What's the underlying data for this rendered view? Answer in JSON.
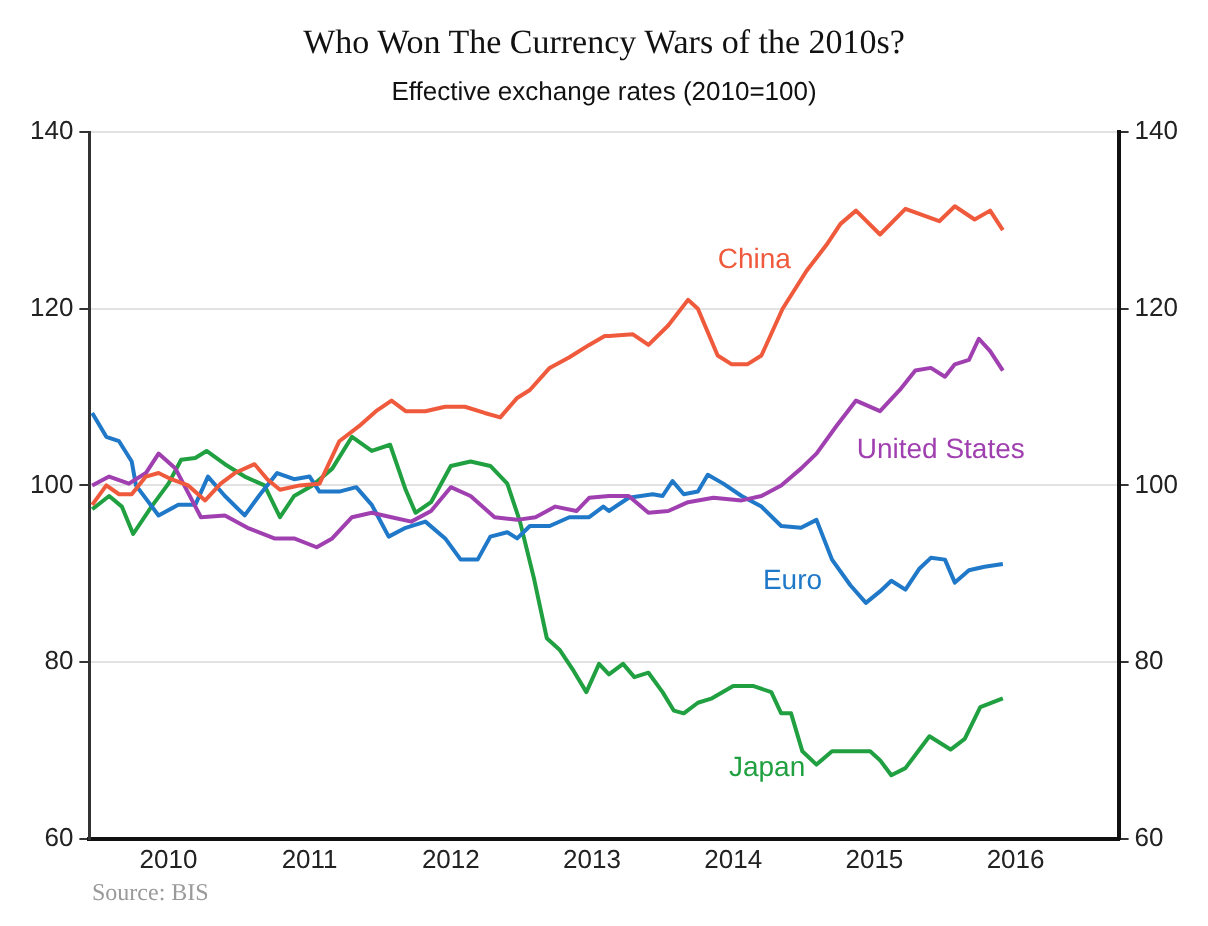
{
  "chart_data": {
    "type": "line",
    "title": "Who Won The Currency Wars of the 2010s?",
    "subtitle": "Effective exchange rates (2010=100)",
    "series": [
      {
        "name": "China",
        "color": "#f05a3c",
        "x": [
          2009.96,
          2010.06,
          2010.15,
          2010.24,
          2010.34,
          2010.43,
          2010.52,
          2010.64,
          2010.76,
          2010.87,
          2010.97,
          2011.11,
          2011.2,
          2011.29,
          2011.43,
          2011.57,
          2011.71,
          2011.85,
          2011.97,
          2012.08,
          2012.18,
          2012.32,
          2012.46,
          2012.6,
          2012.74,
          2012.85,
          2012.97,
          2013.06,
          2013.2,
          2013.34,
          2013.48,
          2013.59,
          2013.62,
          2013.79,
          2013.9,
          2014.04,
          2014.18,
          2014.25,
          2014.39,
          2014.49,
          2014.6,
          2014.7,
          2014.85,
          2015.02,
          2015.16,
          2015.26,
          2015.37,
          2015.54,
          2015.72,
          2015.96,
          2016.07,
          2016.21,
          2016.32,
          2016.41
        ],
        "values": [
          97.8,
          100,
          99,
          99,
          101,
          101.4,
          100.7,
          100,
          98.3,
          100.2,
          101.4,
          102.4,
          100.7,
          99.5,
          100,
          100.2,
          105,
          106.7,
          108.4,
          109.6,
          108.4,
          108.4,
          108.9,
          108.9,
          108.2,
          107.7,
          109.9,
          110.8,
          113.3,
          114.5,
          115.9,
          116.9,
          116.9,
          117.1,
          115.9,
          118.1,
          121,
          120,
          114.7,
          113.7,
          113.7,
          114.7,
          120,
          124.3,
          127.2,
          129.6,
          131.1,
          128.4,
          131.3,
          129.9,
          131.6,
          130.1,
          131.1,
          128.9
        ]
      },
      {
        "name": "United States",
        "color": "#a040b0",
        "x": [
          2009.96,
          2010.08,
          2010.22,
          2010.34,
          2010.43,
          2010.55,
          2010.73,
          2010.9,
          2011.06,
          2011.25,
          2011.39,
          2011.55,
          2011.66,
          2011.8,
          2011.94,
          2012.08,
          2012.22,
          2012.36,
          2012.5,
          2012.64,
          2012.81,
          2012.97,
          2013.1,
          2013.24,
          2013.39,
          2013.48,
          2013.62,
          2013.76,
          2013.9,
          2014.04,
          2014.18,
          2014.36,
          2014.56,
          2014.7,
          2014.84,
          2014.98,
          2015.09,
          2015.23,
          2015.37,
          2015.54,
          2015.68,
          2015.79,
          2015.9,
          2016.0,
          2016.07,
          2016.17,
          2016.24,
          2016.32,
          2016.41
        ],
        "values": [
          100,
          101,
          100.2,
          101.4,
          103.6,
          101.9,
          96.4,
          96.6,
          95.2,
          94,
          94,
          93,
          94,
          96.4,
          96.9,
          96.4,
          95.9,
          97.1,
          99.8,
          98.8,
          96.4,
          96.1,
          96.4,
          97.6,
          97.1,
          98.6,
          98.8,
          98.8,
          96.9,
          97.1,
          98.1,
          98.6,
          98.3,
          98.8,
          100,
          101.9,
          103.6,
          106.7,
          109.6,
          108.4,
          110.8,
          113,
          113.3,
          112.3,
          113.7,
          114.2,
          116.6,
          115.2,
          113
        ]
      },
      {
        "name": "Euro",
        "color": "#1f78c8",
        "x": [
          2009.96,
          2010.06,
          2010.15,
          2010.24,
          2010.27,
          2010.43,
          2010.57,
          2010.69,
          2010.78,
          2010.9,
          2011.04,
          2011.15,
          2011.27,
          2011.39,
          2011.5,
          2011.57,
          2011.71,
          2011.83,
          2011.94,
          2012.06,
          2012.18,
          2012.32,
          2012.46,
          2012.57,
          2012.69,
          2012.78,
          2012.9,
          2012.97,
          2013.06,
          2013.2,
          2013.34,
          2013.48,
          2013.58,
          2013.62,
          2013.76,
          2013.93,
          2014.0,
          2014.07,
          2014.15,
          2014.25,
          2014.32,
          2014.43,
          2014.56,
          2014.7,
          2014.84,
          2014.98,
          2015.09,
          2015.2,
          2015.33,
          2015.44,
          2015.54,
          2015.62,
          2015.72,
          2015.82,
          2015.9,
          2016.0,
          2016.07,
          2016.17,
          2016.28,
          2016.41
        ],
        "values": [
          108.2,
          105.5,
          105,
          102.7,
          100,
          96.6,
          97.8,
          97.8,
          101,
          98.8,
          96.6,
          99,
          101.4,
          100.7,
          101,
          99.3,
          99.3,
          99.8,
          97.8,
          94.2,
          95.2,
          95.9,
          94,
          91.6,
          91.6,
          94.2,
          94.7,
          94,
          95.4,
          95.4,
          96.4,
          96.4,
          97.6,
          97.1,
          98.6,
          99,
          98.8,
          100.5,
          99,
          99.3,
          101.2,
          100.2,
          98.8,
          97.6,
          95.4,
          95.2,
          96.1,
          91.6,
          88.7,
          86.7,
          88,
          89.2,
          88.2,
          90.6,
          91.8,
          91.6,
          89,
          90.4,
          90.8,
          91.1
        ]
      },
      {
        "name": "Japan",
        "color": "#20a040",
        "x": [
          2009.96,
          2010.08,
          2010.17,
          2010.25,
          2010.38,
          2010.5,
          2010.59,
          2010.69,
          2010.77,
          2010.9,
          2011.04,
          2011.18,
          2011.29,
          2011.39,
          2011.52,
          2011.66,
          2011.8,
          2011.94,
          2012.07,
          2012.18,
          2012.25,
          2012.36,
          2012.5,
          2012.64,
          2012.78,
          2012.9,
          2012.99,
          2013.09,
          2013.18,
          2013.27,
          2013.37,
          2013.46,
          2013.55,
          2013.62,
          2013.72,
          2013.8,
          2013.9,
          2014.0,
          2014.08,
          2014.15,
          2014.25,
          2014.35,
          2014.5,
          2014.64,
          2014.77,
          2014.84,
          2014.91,
          2014.99,
          2015.09,
          2015.2,
          2015.34,
          2015.47,
          2015.54,
          2015.62,
          2015.72,
          2015.89,
          2016.04,
          2016.14,
          2016.25,
          2016.41
        ],
        "values": [
          97.3,
          98.8,
          97.6,
          94.5,
          97.6,
          100.2,
          102.9,
          103.1,
          103.9,
          102.4,
          101,
          100,
          96.4,
          98.8,
          100,
          101.9,
          105.5,
          103.9,
          104.6,
          99.5,
          96.9,
          98.1,
          102.2,
          102.7,
          102.2,
          100.2,
          95.9,
          89.4,
          82.7,
          81.4,
          79,
          76.6,
          79.8,
          78.6,
          79.8,
          78.3,
          78.8,
          76.6,
          74.5,
          74.2,
          75.4,
          75.9,
          77.3,
          77.3,
          76.6,
          74.2,
          74.2,
          69.9,
          68.4,
          69.9,
          69.9,
          69.9,
          68.9,
          67.2,
          68,
          71.6,
          70.1,
          71.3,
          74.9,
          75.9
        ]
      }
    ],
    "xlim": [
      2009.94,
      2017.23
    ],
    "xticks": [
      {
        "value": 2010.5,
        "label": "2010"
      },
      {
        "value": 2011.5,
        "label": "2011"
      },
      {
        "value": 2012.5,
        "label": "2012"
      },
      {
        "value": 2013.5,
        "label": "2013"
      },
      {
        "value": 2014.5,
        "label": "2014"
      },
      {
        "value": 2015.5,
        "label": "2015"
      },
      {
        "value": 2016.5,
        "label": "2016"
      }
    ],
    "ylim": [
      60,
      140
    ],
    "yticks": [
      60,
      80,
      100,
      120,
      140
    ],
    "y2lim": [
      60,
      140
    ],
    "y2ticks": [
      60,
      80,
      100,
      120,
      140
    ],
    "grid": "y",
    "legend": false,
    "marker": "none",
    "line_style": "solid",
    "annotations": [
      "Source: BIS"
    ]
  }
}
